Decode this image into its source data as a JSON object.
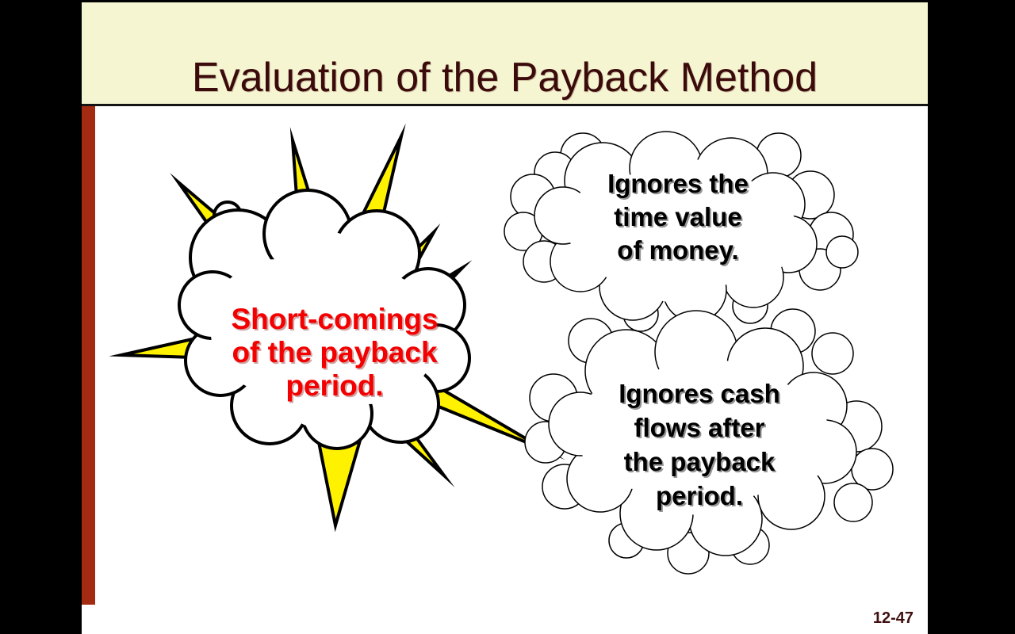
{
  "slide": {
    "title": "Evaluation of the Payback Method",
    "page_number": "12-47",
    "burst": {
      "lines": [
        "Short-comings",
        "of the payback",
        "period."
      ]
    },
    "cloud_top": {
      "lines": [
        "Ignores the",
        "time value",
        "of money."
      ]
    },
    "cloud_bottom": {
      "lines": [
        "Ignores cash",
        "flows after",
        "the payback",
        "period."
      ]
    },
    "colors": {
      "header_bg": "#F6F5D2",
      "title_text": "#3B0A0A",
      "accent_bar": "#A32B12",
      "spike_yellow": "#FFF200",
      "burst_text": "#F40000",
      "cloud_text": "#000000",
      "page_number": "#401010"
    }
  }
}
